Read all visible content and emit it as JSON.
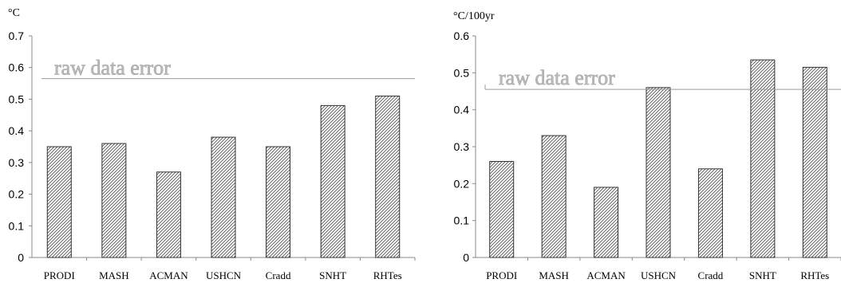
{
  "chart_data": [
    {
      "type": "bar",
      "title": "",
      "ylabel": "°C",
      "xlabel": "",
      "categories": [
        "PRODI",
        "MASH",
        "ACMAN",
        "USHCN",
        "Cradd",
        "SNHT",
        "RHTes"
      ],
      "values": [
        0.35,
        0.36,
        0.27,
        0.38,
        0.35,
        0.48,
        0.51
      ],
      "ylim": [
        0,
        0.7
      ],
      "yticks": [
        "0",
        "0.1",
        "0.2",
        "0.3",
        "0.4",
        "0.5",
        "0.6",
        "0.7"
      ],
      "grid": false,
      "annotation": {
        "text": "raw data error",
        "value": 0.565
      }
    },
    {
      "type": "bar",
      "title": "",
      "ylabel": "°C/100yr",
      "xlabel": "",
      "categories": [
        "PRODI",
        "MASH",
        "ACMAN",
        "USHCN",
        "Cradd",
        "SNHT",
        "RHTes"
      ],
      "values": [
        0.26,
        0.33,
        0.19,
        0.46,
        0.24,
        0.535,
        0.515
      ],
      "ylim": [
        0,
        0.6
      ],
      "yticks": [
        "0",
        "0.1",
        "0.2",
        "0.3",
        "0.4",
        "0.5",
        "0.6"
      ],
      "grid": false,
      "annotation": {
        "text": "raw data error",
        "value": 0.455
      }
    }
  ],
  "colors": {
    "bar_fill": "#ffffff",
    "bar_hatch": "#555555",
    "axis": "#888888",
    "reference_line": "#9a9a9a",
    "annotation_text": "#b8b8b8"
  }
}
